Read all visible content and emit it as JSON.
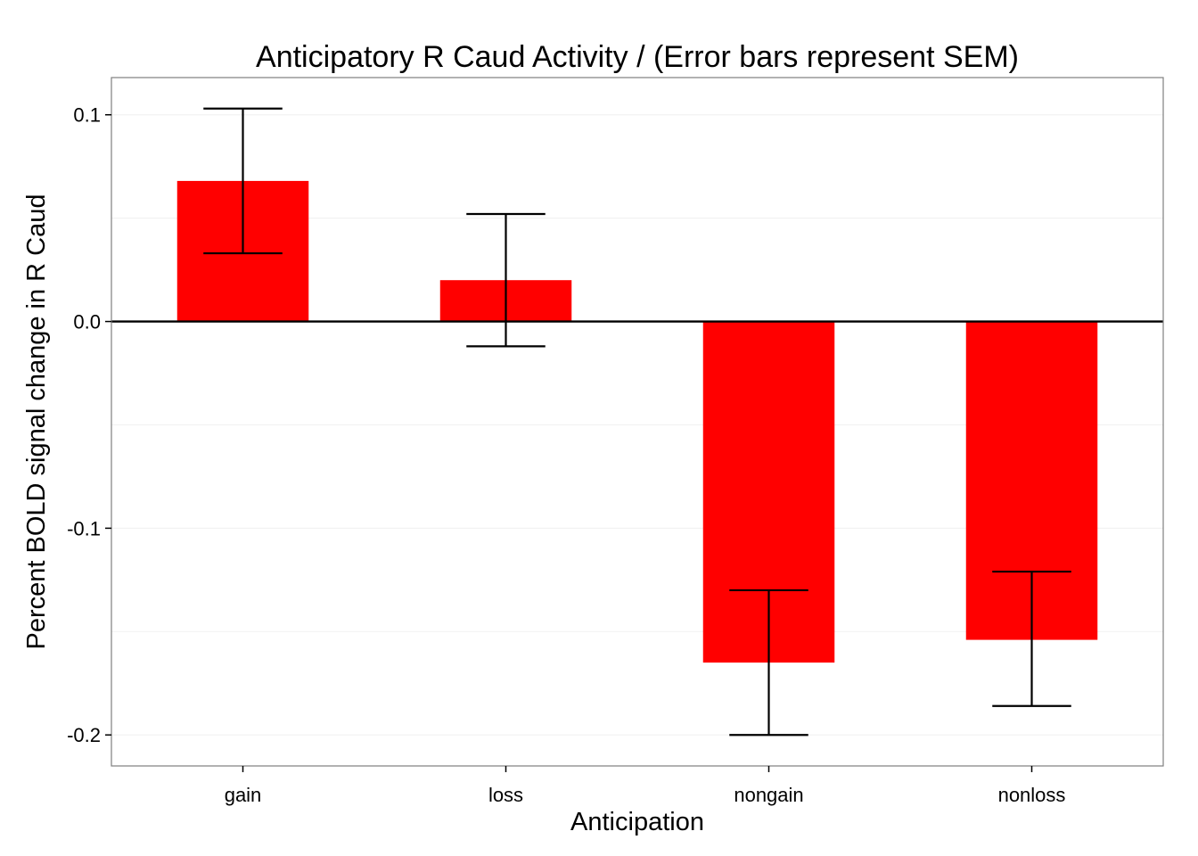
{
  "chart_data": {
    "type": "bar",
    "title": "Anticipatory R Caud Activity / (Error bars represent SEM)",
    "xlabel": "Anticipation",
    "ylabel": "Percent BOLD signal change in R Caud",
    "categories": [
      "gain",
      "loss",
      "nongain",
      "nonloss"
    ],
    "values": [
      0.068,
      0.02,
      -0.165,
      -0.154
    ],
    "error_bars": {
      "lower": [
        0.033,
        -0.012,
        -0.2,
        -0.186
      ],
      "upper": [
        0.103,
        0.052,
        -0.13,
        -0.121
      ]
    },
    "ylim": [
      -0.215,
      0.118
    ],
    "yticks": [
      -0.2,
      -0.1,
      0.0,
      0.1
    ],
    "ytick_labels": [
      "-0.2",
      "-0.1",
      "0.0",
      "0.1"
    ],
    "grid": true,
    "bar_color": "#ff0000",
    "error_bar_color": "#000000",
    "zero_line_color": "#000000",
    "panel_border_color": "#7f7f7f",
    "grid_color": "#f2f2f2"
  }
}
